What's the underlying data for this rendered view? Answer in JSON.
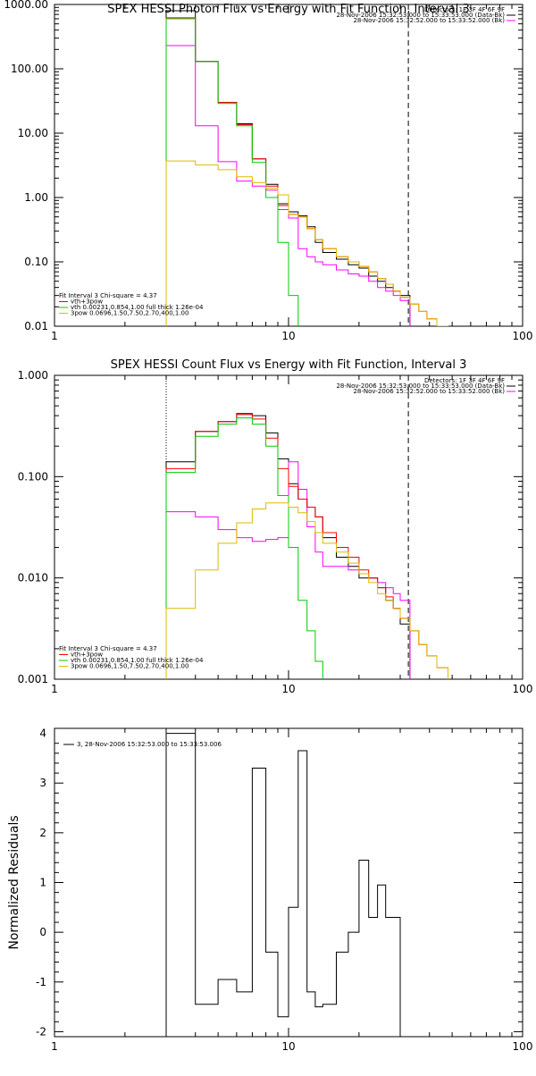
{
  "chart_data": [
    {
      "type": "line",
      "title": "SPEX HESSI Photon Flux vs Energy with Fit Function, Interval 3",
      "xscale": "log",
      "yscale": "log",
      "xlim": [
        1,
        100
      ],
      "ylim": [
        0.01,
        1000
      ],
      "xticks": [
        "1",
        "10",
        "100"
      ],
      "yticks": [
        "0.01",
        "0.10",
        "1.00",
        "10.00",
        "100.00",
        "1000.00"
      ],
      "header_lines": [
        "Detectors: 1F 3F 4F 6F 9F",
        "28-Nov-2006 15:32:53.000 to 15:33:53.000 (Data-Bk)",
        "28-Nov-2006 15:32:52.000 to 15:33:52.000 (Bk)"
      ],
      "legend_lines": [
        "Fit Interval 3   Chi-square = 4.37",
        "vth+3pow",
        "vth 0.00231,0.854,1.00  full thick 1.26e-04",
        "3pow 0.0696,1.50,7.50,2.70,400,1.00"
      ],
      "vlines": [
        {
          "x": 3.0,
          "style": "dotted"
        },
        {
          "x": 32.5,
          "style": "dashed"
        }
      ],
      "series": [
        {
          "name": "28-Nov-2006 15:32:53.000 to 15:33:53.000 (Data-Bk)",
          "color": "#000000",
          "edges": [
            3,
            4,
            5,
            6,
            7,
            8,
            9,
            10,
            11,
            12,
            13,
            14,
            16,
            18,
            20,
            22,
            24,
            26,
            28,
            30,
            33
          ],
          "values": [
            800,
            130,
            30,
            14,
            4,
            1.6,
            0.8,
            0.6,
            0.52,
            0.35,
            0.2,
            0.14,
            0.11,
            0.09,
            0.08,
            0.06,
            0.05,
            0.04,
            0.035,
            0.03
          ]
        },
        {
          "name": "28-Nov-2006 15:32:52.000 to 15:33:52.000 (Bk)",
          "color": "#ff00ff",
          "edges": [
            3,
            4,
            5,
            6,
            7,
            8,
            9,
            10,
            11,
            12,
            13,
            14,
            16,
            18,
            20,
            22,
            24,
            26,
            28,
            30,
            33
          ],
          "values": [
            230,
            13,
            3.6,
            1.8,
            1.5,
            1.3,
            0.65,
            0.48,
            0.16,
            0.12,
            0.1,
            0.09,
            0.075,
            0.065,
            0.06,
            0.05,
            0.04,
            0.035,
            0.03,
            0.025
          ]
        },
        {
          "name": "vth+3pow",
          "color": "#ff0000",
          "edges": [
            3,
            4,
            5,
            6,
            7,
            8,
            9,
            10,
            11,
            12,
            13,
            14,
            16,
            18,
            20,
            22,
            24,
            26,
            28,
            30,
            33,
            36,
            39,
            43,
            48
          ],
          "values": [
            620,
            130,
            30,
            13.5,
            4,
            1.5,
            0.75,
            0.55,
            0.5,
            0.33,
            0.22,
            0.16,
            0.12,
            0.1,
            0.085,
            0.07,
            0.055,
            0.045,
            0.035,
            0.028,
            0.022,
            0.017,
            0.013,
            0.01
          ]
        },
        {
          "name": "vth 0.00231,0.854,1.00  full thick 1.26e-04",
          "color": "#00cc00",
          "edges": [
            3,
            4,
            5,
            6,
            7,
            8,
            9,
            10,
            11
          ],
          "values": [
            600,
            130,
            29,
            13,
            3.5,
            1,
            0.2,
            0.03
          ]
        },
        {
          "name": "3pow 0.0696,1.50,7.50,2.70,400,1.00",
          "color": "#ddbb00",
          "edges": [
            3,
            4,
            5,
            6,
            7,
            8,
            9,
            10,
            11,
            12,
            13,
            14,
            16,
            18,
            20,
            22,
            24,
            26,
            28,
            30,
            33,
            36,
            39,
            43,
            48
          ],
          "values": [
            3.7,
            3.2,
            2.7,
            2.1,
            1.7,
            1.4,
            1.1,
            0.55,
            0.5,
            0.33,
            0.22,
            0.16,
            0.12,
            0.1,
            0.085,
            0.07,
            0.055,
            0.045,
            0.035,
            0.028,
            0.022,
            0.017,
            0.013,
            0.01
          ]
        }
      ]
    },
    {
      "type": "line",
      "title": "SPEX HESSI Count Flux vs Energy with Fit Function, Interval 3",
      "xscale": "log",
      "yscale": "log",
      "xlim": [
        1,
        100
      ],
      "ylim": [
        0.001,
        1
      ],
      "xticks": [
        "1",
        "10",
        "100"
      ],
      "yticks": [
        "0.001",
        "0.010",
        "0.100",
        "1.000"
      ],
      "header_lines": [
        "Detectors: 1F 3F 4F 6F 9F",
        "28-Nov-2006 15:32:53.000 to 15:33:53.000 (Data-Bk)",
        "28-Nov-2006 15:32:52.000 to 15:33:52.000 (Bk)"
      ],
      "legend_lines": [
        "Fit Interval 3   Chi-square = 4.37",
        "vth+3pow",
        "vth 0.00231,0.854,1.00  full thick 1.26e-04",
        "3pow 0.0696,1.50,7.50,2.70,400,1.00"
      ],
      "vlines": [
        {
          "x": 3.0,
          "style": "dotted"
        },
        {
          "x": 32.5,
          "style": "dashed"
        }
      ],
      "series": [
        {
          "name": "28-Nov-2006 15:32:53.000 to 15:33:53.000 (Data-Bk)",
          "color": "#000000",
          "edges": [
            3,
            4,
            5,
            6,
            7,
            8,
            9,
            10,
            11,
            12,
            13,
            14,
            16,
            18,
            20,
            22,
            24,
            26,
            28,
            30,
            33
          ],
          "values": [
            0.14,
            0.28,
            0.35,
            0.42,
            0.4,
            0.27,
            0.15,
            0.085,
            0.06,
            0.05,
            0.04,
            0.025,
            0.016,
            0.013,
            0.01,
            0.01,
            0.008,
            0.006,
            0.005,
            0.0035
          ]
        },
        {
          "name": "28-Nov-2006 15:32:52.000 to 15:33:52.000 (Bk)",
          "color": "#ff00ff",
          "edges": [
            3,
            4,
            5,
            6,
            7,
            8,
            9,
            10,
            11,
            12,
            13,
            14,
            16,
            18,
            20,
            22,
            24,
            26,
            28,
            30,
            33
          ],
          "values": [
            0.045,
            0.04,
            0.03,
            0.025,
            0.023,
            0.024,
            0.025,
            0.14,
            0.075,
            0.032,
            0.018,
            0.013,
            0.013,
            0.012,
            0.011,
            0.01,
            0.009,
            0.008,
            0.007,
            0.006
          ]
        },
        {
          "name": "vth+3pow",
          "color": "#ff0000",
          "edges": [
            3,
            4,
            5,
            6,
            7,
            8,
            9,
            10,
            11,
            12,
            13,
            14,
            16,
            18,
            20,
            22,
            24,
            26,
            28,
            30,
            33,
            36,
            39,
            43,
            48
          ],
          "values": [
            0.12,
            0.28,
            0.35,
            0.41,
            0.37,
            0.24,
            0.12,
            0.08,
            0.06,
            0.05,
            0.04,
            0.028,
            0.02,
            0.016,
            0.012,
            0.01,
            0.008,
            0.0065,
            0.005,
            0.004,
            0.003,
            0.0022,
            0.0017,
            0.0013
          ]
        },
        {
          "name": "vth 0.00231,0.854,1.00  full thick 1.26e-04",
          "color": "#00cc00",
          "edges": [
            3,
            4,
            5,
            6,
            7,
            8,
            9,
            10,
            11,
            12,
            13,
            14
          ],
          "values": [
            0.11,
            0.25,
            0.33,
            0.38,
            0.33,
            0.2,
            0.065,
            0.02,
            0.006,
            0.003,
            0.0015
          ]
        },
        {
          "name": "3pow 0.0696,1.50,7.50,2.70,400,1.00",
          "color": "#ddbb00",
          "edges": [
            3,
            4,
            5,
            6,
            7,
            8,
            9,
            10,
            11,
            12,
            13,
            14,
            16,
            18,
            20,
            22,
            24,
            26,
            28,
            30,
            33,
            36,
            39,
            43,
            48
          ],
          "values": [
            0.005,
            0.012,
            0.022,
            0.035,
            0.048,
            0.055,
            0.055,
            0.05,
            0.044,
            0.036,
            0.028,
            0.022,
            0.018,
            0.014,
            0.011,
            0.009,
            0.007,
            0.006,
            0.005,
            0.004,
            0.003,
            0.0022,
            0.0017,
            0.0013
          ]
        }
      ]
    },
    {
      "type": "line",
      "title": "",
      "xscale": "log",
      "yscale": "linear",
      "xlim": [
        1,
        100
      ],
      "ylim": [
        -2.1,
        4.1
      ],
      "ylabel": "Normalized Residuals",
      "xticks": [
        "1",
        "10",
        "100"
      ],
      "yticks": [
        "-2",
        "-1",
        "0",
        "1",
        "2",
        "3",
        "4"
      ],
      "legend_lines": [
        "3, 28-Nov-2006 15:32:53.000 to 15:33:53.006"
      ],
      "series": [
        {
          "name": "3, 28-Nov-2006 15:32:53.000 to 15:33:53.006",
          "color": "#000000",
          "edges": [
            3,
            4,
            5,
            6,
            7,
            8,
            9,
            10,
            11,
            12,
            13,
            14,
            16,
            18,
            20,
            22,
            24,
            26,
            28,
            30,
            33
          ],
          "values": [
            4.0,
            -1.45,
            -0.95,
            -1.2,
            3.3,
            -0.4,
            -1.7,
            0.5,
            3.65,
            -1.2,
            -1.5,
            -1.45,
            -0.4,
            0.0,
            1.45,
            0.3,
            0.95,
            0.3,
            0.3,
            -2.1
          ]
        }
      ]
    }
  ]
}
